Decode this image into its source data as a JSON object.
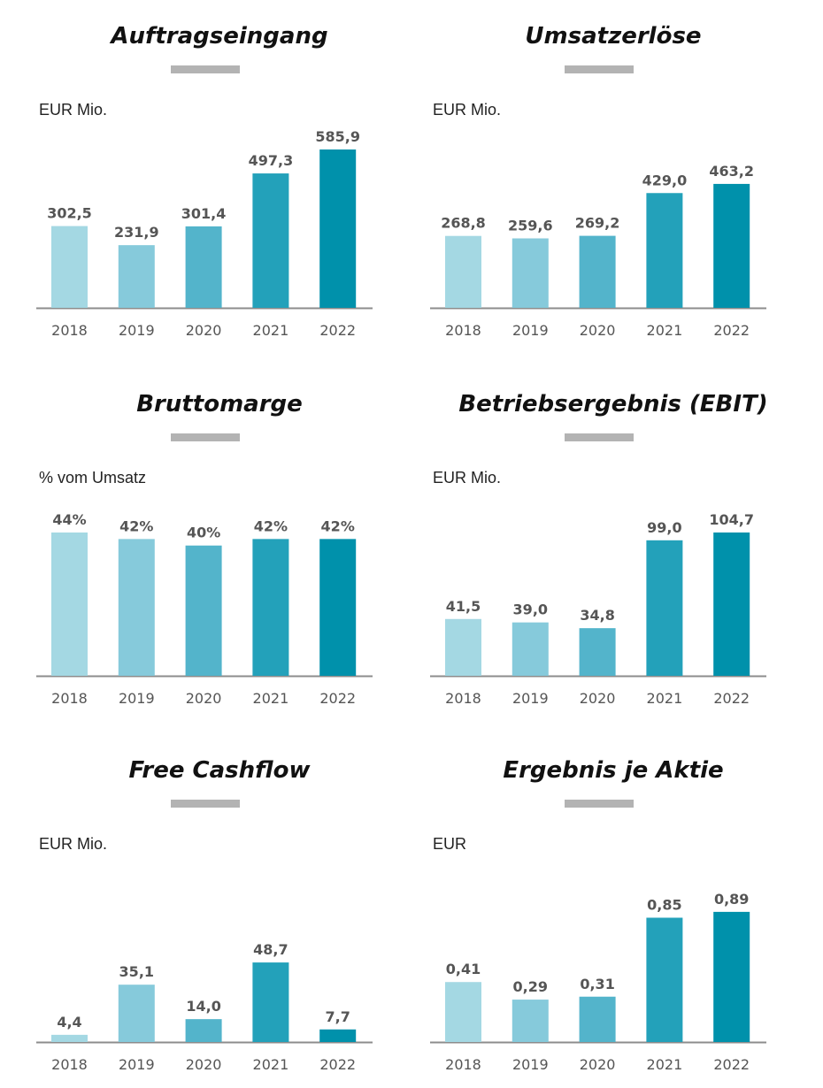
{
  "colors": {
    "bars": [
      "#a4d8e3",
      "#86cadb",
      "#53b4cb",
      "#23a1ba",
      "#0091ab"
    ],
    "axis": "#8c8c8c",
    "title_bar": "#b3b3b3"
  },
  "chart_data": [
    {
      "type": "bar",
      "title": "Auftragseingang",
      "unit": "EUR Mio.",
      "categories": [
        "2018",
        "2019",
        "2020",
        "2021",
        "2022"
      ],
      "values": [
        302.5,
        231.9,
        301.4,
        497.3,
        585.9
      ],
      "labels": [
        "302,5",
        "231,9",
        "301,4",
        "497,3",
        "585,9"
      ],
      "ylim": [
        0,
        585.9
      ]
    },
    {
      "type": "bar",
      "title": "Umsatzerlöse",
      "unit": "EUR Mio.",
      "categories": [
        "2018",
        "2019",
        "2020",
        "2021",
        "2022"
      ],
      "values": [
        268.8,
        259.6,
        269.2,
        429.0,
        463.2
      ],
      "labels": [
        "268,8",
        "259,6",
        "269,2",
        "429,0",
        "463,2"
      ],
      "ylim": [
        0,
        496
      ]
    },
    {
      "type": "bar",
      "title": "Bruttomarge",
      "unit": "% vom Umsatz",
      "categories": [
        "2018",
        "2019",
        "2020",
        "2021",
        "2022"
      ],
      "values": [
        44,
        42,
        40,
        42,
        42
      ],
      "labels": [
        "44%",
        "42%",
        "40%",
        "42%",
        "42%"
      ],
      "ylim": [
        0,
        44
      ]
    },
    {
      "type": "bar",
      "title": "Betriebsergebnis (EBIT)",
      "unit": "EUR Mio.",
      "categories": [
        "2018",
        "2019",
        "2020",
        "2021",
        "2022"
      ],
      "values": [
        41.5,
        39.0,
        34.8,
        99.0,
        104.7
      ],
      "labels": [
        "41,5",
        "39,0",
        "34,8",
        "99,0",
        "104,7"
      ],
      "ylim": [
        0,
        104.7
      ]
    },
    {
      "type": "bar",
      "title": "Free Cashflow",
      "unit": "EUR Mio.",
      "categories": [
        "2018",
        "2019",
        "2020",
        "2021",
        "2022"
      ],
      "values": [
        4.4,
        35.1,
        14.0,
        48.7,
        7.7
      ],
      "labels": [
        "4,4",
        "35,1",
        "14,0",
        "48,7",
        "7,7"
      ],
      "ylim": [
        0,
        65
      ]
    },
    {
      "type": "bar",
      "title": "Ergebnis je Aktie",
      "unit": "EUR",
      "categories": [
        "2018",
        "2019",
        "2020",
        "2021",
        "2022"
      ],
      "values": [
        0.41,
        0.29,
        0.31,
        0.85,
        0.89
      ],
      "labels": [
        "0,41",
        "0,29",
        "0,31",
        "0,85",
        "0,89"
      ],
      "ylim": [
        0,
        0.98
      ]
    }
  ]
}
